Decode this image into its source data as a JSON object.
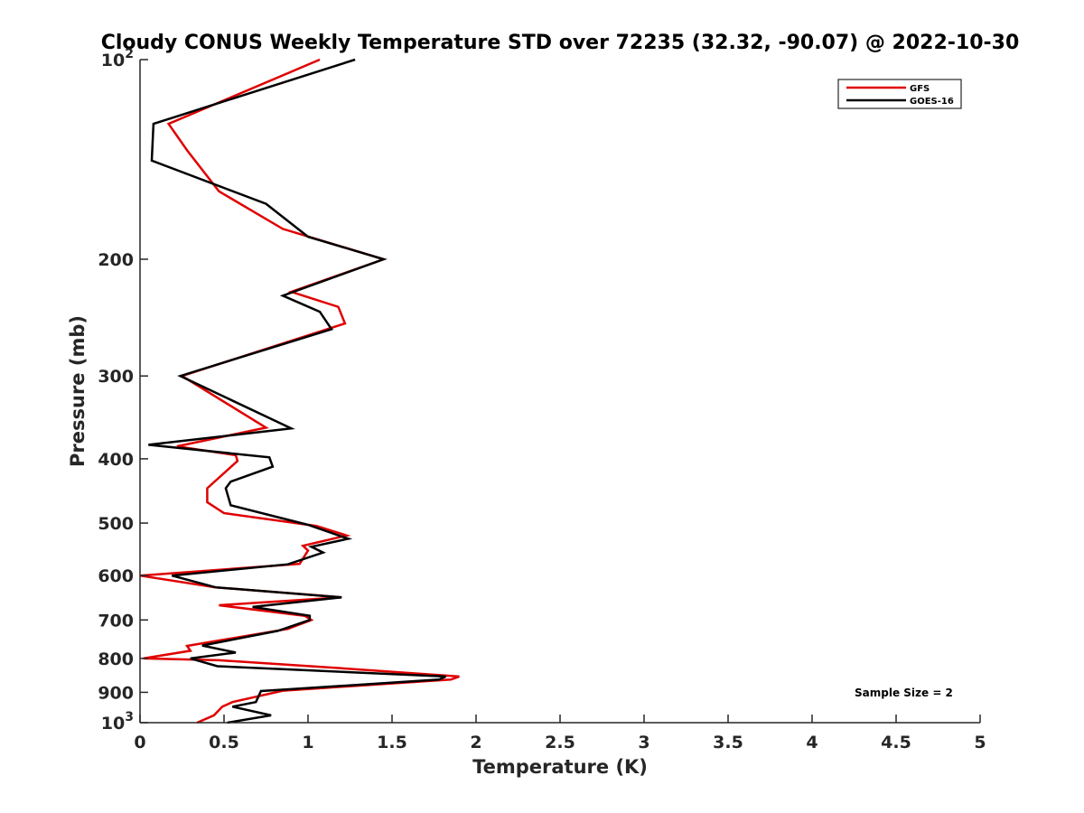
{
  "chart_data": {
    "type": "line",
    "title": "Cloudy CONUS Weekly Temperature STD over 72235 (32.32, -90.07) @ 2022-10-30",
    "xlabel": "Temperature (K)",
    "ylabel": "Pressure (mb)",
    "xlim": [
      0,
      5
    ],
    "ylim": [
      1000,
      100
    ],
    "yscale": "log",
    "y_reversed": true,
    "x_ticks": [
      {
        "value": 0,
        "label": "0"
      },
      {
        "value": 0.5,
        "label": "0.5"
      },
      {
        "value": 1,
        "label": "1"
      },
      {
        "value": 1.5,
        "label": "1.5"
      },
      {
        "value": 2,
        "label": "2"
      },
      {
        "value": 2.5,
        "label": "2.5"
      },
      {
        "value": 3,
        "label": "3"
      },
      {
        "value": 3.5,
        "label": "3.5"
      },
      {
        "value": 4,
        "label": "4"
      },
      {
        "value": 4.5,
        "label": "4.5"
      },
      {
        "value": 5,
        "label": "5"
      }
    ],
    "y_ticks": [
      {
        "value": 100,
        "base": "10",
        "exp": "2"
      },
      {
        "value": 200,
        "base": "200",
        "exp": ""
      },
      {
        "value": 300,
        "base": "300",
        "exp": ""
      },
      {
        "value": 400,
        "base": "400",
        "exp": ""
      },
      {
        "value": 500,
        "base": "500",
        "exp": ""
      },
      {
        "value": 600,
        "base": "600",
        "exp": ""
      },
      {
        "value": 700,
        "base": "700",
        "exp": ""
      },
      {
        "value": 800,
        "base": "800",
        "exp": ""
      },
      {
        "value": 900,
        "base": "900",
        "exp": ""
      },
      {
        "value": 1000,
        "base": "10",
        "exp": "3"
      }
    ],
    "grid": false,
    "legend_position": "top-right",
    "annotation": "Sample Size = 2",
    "series": [
      {
        "name": "GFS",
        "color": "#e00000",
        "points": [
          [
            1.07,
            100
          ],
          [
            0.17,
            125
          ],
          [
            0.28,
            137
          ],
          [
            0.47,
            158
          ],
          [
            0.85,
            180
          ],
          [
            1.45,
            200
          ],
          [
            0.9,
            224
          ],
          [
            1.18,
            236
          ],
          [
            1.22,
            250
          ],
          [
            0.25,
            300
          ],
          [
            0.75,
            359
          ],
          [
            0.22,
            383
          ],
          [
            0.57,
            395
          ],
          [
            0.58,
            403
          ],
          [
            0.4,
            443
          ],
          [
            0.4,
            465
          ],
          [
            0.5,
            483
          ],
          [
            1.05,
            505
          ],
          [
            1.23,
            522
          ],
          [
            0.97,
            541
          ],
          [
            1.0,
            550
          ],
          [
            0.95,
            576
          ],
          [
            0.0,
            600
          ],
          [
            0.45,
            625
          ],
          [
            1.2,
            647
          ],
          [
            0.47,
            665
          ],
          [
            0.98,
            690
          ],
          [
            1.02,
            700
          ],
          [
            0.88,
            722
          ],
          [
            0.28,
            766
          ],
          [
            0.3,
            779
          ],
          [
            0.02,
            800
          ],
          [
            0.47,
            805
          ],
          [
            1.2,
            828
          ],
          [
            1.9,
            852
          ],
          [
            1.85,
            861
          ],
          [
            0.85,
            895
          ],
          [
            0.55,
            931
          ],
          [
            0.49,
            946
          ],
          [
            0.44,
            975
          ],
          [
            0.34,
            1000
          ]
        ]
      },
      {
        "name": "GOES-16",
        "color": "#000000",
        "points": [
          [
            1.28,
            100
          ],
          [
            0.08,
            125
          ],
          [
            0.07,
            142
          ],
          [
            0.75,
            165
          ],
          [
            1.0,
            185
          ],
          [
            1.45,
            200
          ],
          [
            0.85,
            227
          ],
          [
            1.07,
            240
          ],
          [
            1.14,
            255
          ],
          [
            0.24,
            300
          ],
          [
            0.9,
            360
          ],
          [
            0.05,
            381
          ],
          [
            0.77,
            398
          ],
          [
            0.79,
            411
          ],
          [
            0.54,
            433
          ],
          [
            0.51,
            443
          ],
          [
            0.54,
            470
          ],
          [
            1.0,
            503
          ],
          [
            1.24,
            528
          ],
          [
            1.02,
            543
          ],
          [
            1.09,
            554
          ],
          [
            0.88,
            577
          ],
          [
            0.19,
            600
          ],
          [
            0.45,
            625
          ],
          [
            1.2,
            647
          ],
          [
            0.67,
            669
          ],
          [
            1.01,
            690
          ],
          [
            1.01,
            700
          ],
          [
            0.82,
            727
          ],
          [
            0.37,
            765
          ],
          [
            0.57,
            784
          ],
          [
            0.3,
            800
          ],
          [
            0.46,
            822
          ],
          [
            1.82,
            852
          ],
          [
            1.78,
            861
          ],
          [
            0.72,
            896
          ],
          [
            0.69,
            931
          ],
          [
            0.55,
            946
          ],
          [
            0.78,
            975
          ],
          [
            0.52,
            1000
          ]
        ]
      }
    ]
  }
}
